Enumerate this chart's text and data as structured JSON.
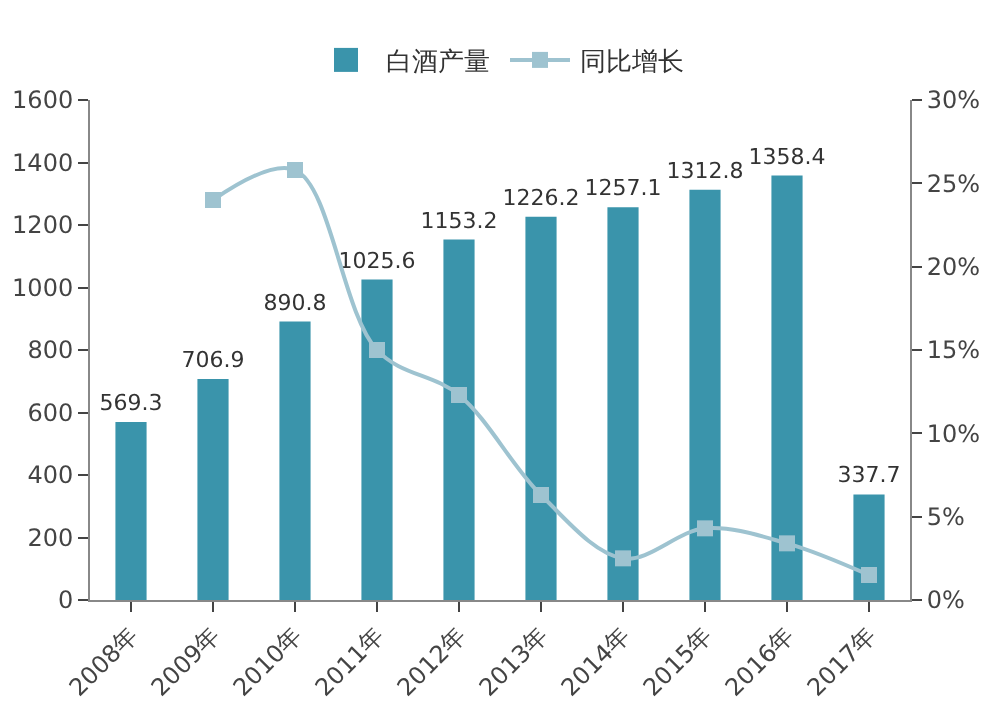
{
  "chart_data": {
    "type": "bar",
    "categories": [
      "2008年",
      "2009年",
      "2010年",
      "2011年",
      "2012年",
      "2013年",
      "2014年",
      "2015年",
      "2016年",
      "2017年"
    ],
    "series": [
      {
        "name": "白酒产量",
        "color": "#3a94ab",
        "values": [
          569.3,
          706.9,
          890.8,
          1025.6,
          1153.2,
          1226.2,
          1257.1,
          1312.8,
          1358.4,
          337.7
        ],
        "data_labels": true
      },
      {
        "name": "同比增长",
        "type": "line",
        "axis": "y2",
        "color": "#9ec3d0",
        "marker": "square",
        "values": [
          null,
          24.0,
          25.8,
          15.0,
          12.3,
          6.3,
          2.5,
          4.3,
          3.4,
          1.5
        ]
      }
    ],
    "ylim": [
      0,
      1600
    ],
    "yticks": [
      0,
      200,
      400,
      600,
      800,
      1000,
      1200,
      1400,
      1600
    ],
    "y2lim": [
      0,
      30
    ],
    "y2ticks": [
      {
        "value": 0,
        "label": "0%"
      },
      {
        "value": 5,
        "label": "5%"
      },
      {
        "value": 10,
        "label": "10%"
      },
      {
        "value": 15,
        "label": "15%"
      },
      {
        "value": 20,
        "label": "20%"
      },
      {
        "value": 25,
        "label": "25%"
      },
      {
        "value": 30,
        "label": "30%"
      }
    ],
    "grid": false,
    "legend": "top"
  }
}
